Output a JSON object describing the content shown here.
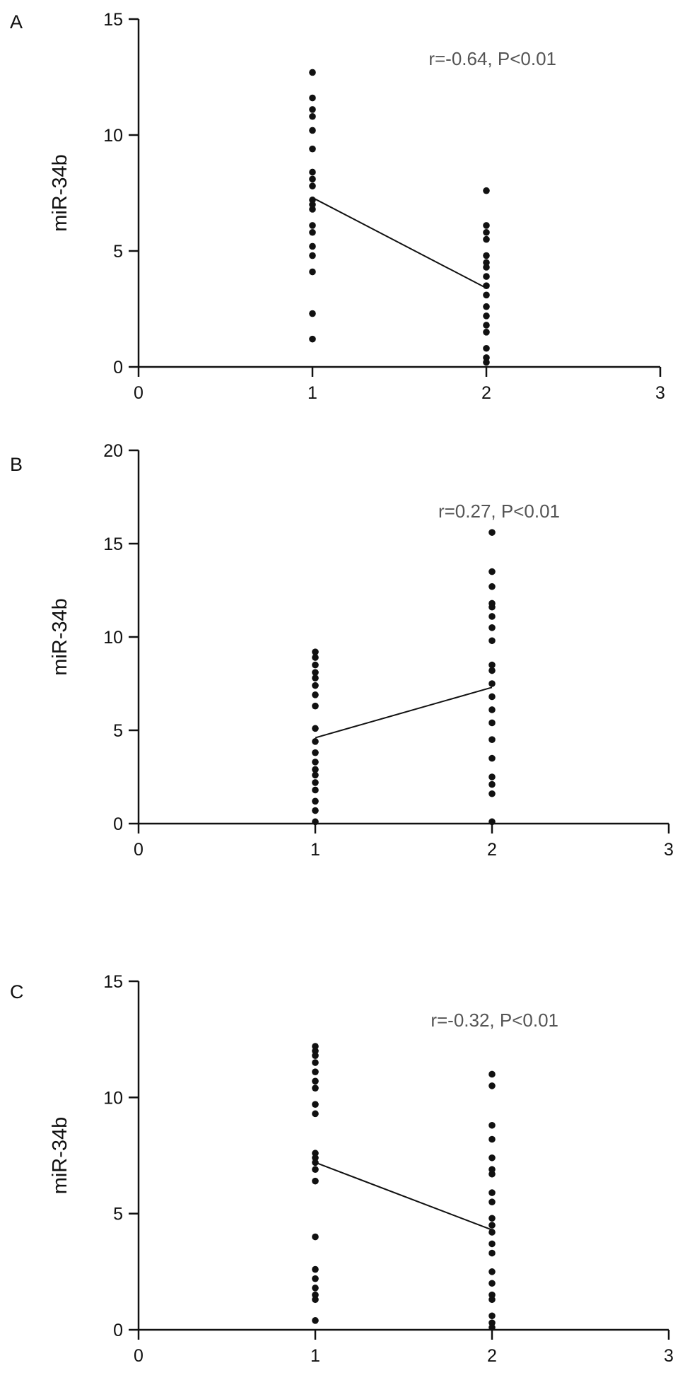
{
  "chart_data": [
    {
      "panel": "A",
      "type": "scatter",
      "ylabel": "miR-34b",
      "xlabel": "",
      "annotation": "r=-0.64,  P<0.01",
      "xlim": [
        0,
        3
      ],
      "ylim": [
        0,
        15
      ],
      "xticks": [
        "0",
        "1",
        "2",
        "3"
      ],
      "yticks": [
        "0",
        "5",
        "10",
        "15"
      ],
      "grid": false,
      "points": [
        {
          "x": 1,
          "y": 12.7
        },
        {
          "x": 1,
          "y": 11.6
        },
        {
          "x": 1,
          "y": 11.1
        },
        {
          "x": 1,
          "y": 10.8
        },
        {
          "x": 1,
          "y": 10.2
        },
        {
          "x": 1,
          "y": 9.4
        },
        {
          "x": 1,
          "y": 8.4
        },
        {
          "x": 1,
          "y": 8.1
        },
        {
          "x": 1,
          "y": 7.8
        },
        {
          "x": 1,
          "y": 7.2
        },
        {
          "x": 1,
          "y": 7.0
        },
        {
          "x": 1,
          "y": 6.8
        },
        {
          "x": 1,
          "y": 6.1
        },
        {
          "x": 1,
          "y": 5.8
        },
        {
          "x": 1,
          "y": 5.2
        },
        {
          "x": 1,
          "y": 4.8
        },
        {
          "x": 1,
          "y": 4.1
        },
        {
          "x": 1,
          "y": 2.3
        },
        {
          "x": 1,
          "y": 1.2
        },
        {
          "x": 2,
          "y": 7.6
        },
        {
          "x": 2,
          "y": 6.1
        },
        {
          "x": 2,
          "y": 5.8
        },
        {
          "x": 2,
          "y": 5.5
        },
        {
          "x": 2,
          "y": 4.8
        },
        {
          "x": 2,
          "y": 4.5
        },
        {
          "x": 2,
          "y": 4.3
        },
        {
          "x": 2,
          "y": 3.9
        },
        {
          "x": 2,
          "y": 3.5
        },
        {
          "x": 2,
          "y": 3.1
        },
        {
          "x": 2,
          "y": 2.6
        },
        {
          "x": 2,
          "y": 2.2
        },
        {
          "x": 2,
          "y": 1.8
        },
        {
          "x": 2,
          "y": 1.5
        },
        {
          "x": 2,
          "y": 0.8
        },
        {
          "x": 2,
          "y": 0.4
        },
        {
          "x": 2,
          "y": 0.2
        }
      ],
      "line": [
        {
          "x": 1,
          "y": 7.3
        },
        {
          "x": 2,
          "y": 3.4
        }
      ]
    },
    {
      "panel": "B",
      "type": "scatter",
      "ylabel": "miR-34b",
      "xlabel": "",
      "annotation": "r=0.27,  P<0.01",
      "xlim": [
        0,
        3
      ],
      "ylim": [
        0,
        20
      ],
      "xticks": [
        "0",
        "1",
        "2",
        "3"
      ],
      "yticks": [
        "0",
        "5",
        "10",
        "15",
        "20"
      ],
      "grid": false,
      "points": [
        {
          "x": 1,
          "y": 9.2
        },
        {
          "x": 1,
          "y": 8.9
        },
        {
          "x": 1,
          "y": 8.5
        },
        {
          "x": 1,
          "y": 8.1
        },
        {
          "x": 1,
          "y": 7.8
        },
        {
          "x": 1,
          "y": 7.4
        },
        {
          "x": 1,
          "y": 6.9
        },
        {
          "x": 1,
          "y": 6.3
        },
        {
          "x": 1,
          "y": 5.1
        },
        {
          "x": 1,
          "y": 4.4
        },
        {
          "x": 1,
          "y": 3.8
        },
        {
          "x": 1,
          "y": 3.3
        },
        {
          "x": 1,
          "y": 2.9
        },
        {
          "x": 1,
          "y": 2.6
        },
        {
          "x": 1,
          "y": 2.2
        },
        {
          "x": 1,
          "y": 1.8
        },
        {
          "x": 1,
          "y": 1.2
        },
        {
          "x": 1,
          "y": 0.7
        },
        {
          "x": 1,
          "y": 0.1
        },
        {
          "x": 2,
          "y": 15.6
        },
        {
          "x": 2,
          "y": 13.5
        },
        {
          "x": 2,
          "y": 12.7
        },
        {
          "x": 2,
          "y": 11.8
        },
        {
          "x": 2,
          "y": 11.6
        },
        {
          "x": 2,
          "y": 11.1
        },
        {
          "x": 2,
          "y": 10.5
        },
        {
          "x": 2,
          "y": 9.8
        },
        {
          "x": 2,
          "y": 8.5
        },
        {
          "x": 2,
          "y": 8.2
        },
        {
          "x": 2,
          "y": 7.5
        },
        {
          "x": 2,
          "y": 6.8
        },
        {
          "x": 2,
          "y": 6.1
        },
        {
          "x": 2,
          "y": 5.4
        },
        {
          "x": 2,
          "y": 4.5
        },
        {
          "x": 2,
          "y": 3.5
        },
        {
          "x": 2,
          "y": 2.5
        },
        {
          "x": 2,
          "y": 2.1
        },
        {
          "x": 2,
          "y": 1.6
        },
        {
          "x": 2,
          "y": 0.1
        }
      ],
      "line": [
        {
          "x": 1,
          "y": 4.6
        },
        {
          "x": 2,
          "y": 7.3
        }
      ]
    },
    {
      "panel": "C",
      "type": "scatter",
      "ylabel": "miR-34b",
      "xlabel": "",
      "annotation": "r=-0.32,  P<0.01",
      "xlim": [
        0,
        3
      ],
      "ylim": [
        0,
        15
      ],
      "xticks": [
        "0",
        "1",
        "2",
        "3"
      ],
      "yticks": [
        "0",
        "5",
        "10",
        "15"
      ],
      "grid": false,
      "points": [
        {
          "x": 1,
          "y": 12.2
        },
        {
          "x": 1,
          "y": 12.0
        },
        {
          "x": 1,
          "y": 11.8
        },
        {
          "x": 1,
          "y": 11.5
        },
        {
          "x": 1,
          "y": 11.1
        },
        {
          "x": 1,
          "y": 10.7
        },
        {
          "x": 1,
          "y": 10.4
        },
        {
          "x": 1,
          "y": 9.7
        },
        {
          "x": 1,
          "y": 9.3
        },
        {
          "x": 1,
          "y": 7.6
        },
        {
          "x": 1,
          "y": 7.4
        },
        {
          "x": 1,
          "y": 7.2
        },
        {
          "x": 1,
          "y": 6.9
        },
        {
          "x": 1,
          "y": 6.4
        },
        {
          "x": 1,
          "y": 4.0
        },
        {
          "x": 1,
          "y": 2.6
        },
        {
          "x": 1,
          "y": 2.2
        },
        {
          "x": 1,
          "y": 1.8
        },
        {
          "x": 1,
          "y": 1.5
        },
        {
          "x": 1,
          "y": 1.3
        },
        {
          "x": 1,
          "y": 0.4
        },
        {
          "x": 2,
          "y": 11.0
        },
        {
          "x": 2,
          "y": 10.5
        },
        {
          "x": 2,
          "y": 8.8
        },
        {
          "x": 2,
          "y": 8.2
        },
        {
          "x": 2,
          "y": 7.4
        },
        {
          "x": 2,
          "y": 6.9
        },
        {
          "x": 2,
          "y": 6.7
        },
        {
          "x": 2,
          "y": 5.9
        },
        {
          "x": 2,
          "y": 5.5
        },
        {
          "x": 2,
          "y": 4.8
        },
        {
          "x": 2,
          "y": 4.5
        },
        {
          "x": 2,
          "y": 4.2
        },
        {
          "x": 2,
          "y": 3.7
        },
        {
          "x": 2,
          "y": 3.3
        },
        {
          "x": 2,
          "y": 2.5
        },
        {
          "x": 2,
          "y": 2.0
        },
        {
          "x": 2,
          "y": 1.5
        },
        {
          "x": 2,
          "y": 1.3
        },
        {
          "x": 2,
          "y": 0.6
        },
        {
          "x": 2,
          "y": 0.3
        },
        {
          "x": 2,
          "y": 0.1
        }
      ],
      "line": [
        {
          "x": 1,
          "y": 7.2
        },
        {
          "x": 2,
          "y": 4.3
        }
      ]
    }
  ]
}
